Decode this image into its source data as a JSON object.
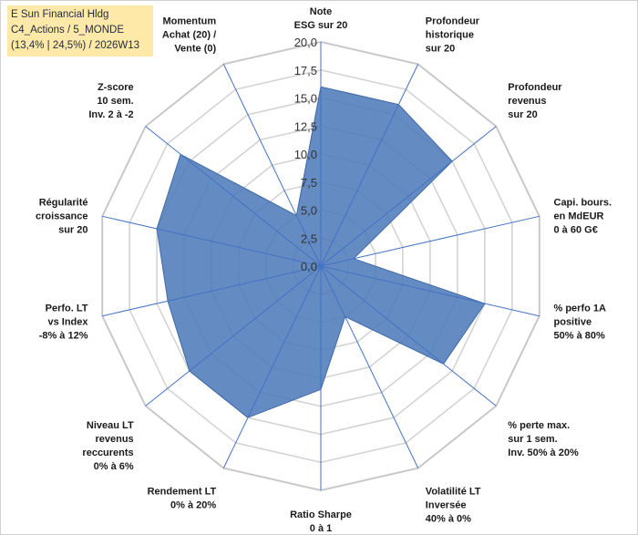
{
  "header": {
    "line1": "E Sun Financial Hldg",
    "line2": "C4_Actions / 5_MONDE",
    "line3": "(13,4% | 24,5%) / 2026W13"
  },
  "chart_data": {
    "type": "radar",
    "axes": [
      [
        "Note",
        "ESG sur 20"
      ],
      [
        "Profondeur",
        "historique",
        "sur 20"
      ],
      [
        "Profondeur",
        "revenus",
        "sur 20"
      ],
      [
        "Capi. bours.",
        "en MdEUR",
        "0 à 60 G€"
      ],
      [
        "% perfo 1A",
        "positive",
        "50% à 80%"
      ],
      [
        "% perte max.",
        "sur 1 sem.",
        "Inv. 50% à 20%"
      ],
      [
        "Volatilité LT",
        "Inversée",
        "40% à 0%"
      ],
      [
        "Ratio Sharpe",
        "0 à 1"
      ],
      [
        "Rendement LT",
        "0% à 20%"
      ],
      [
        "Niveau LT",
        "revenus",
        "reccurents",
        "0% à 6%"
      ],
      [
        "Perfo. LT",
        "vs Index",
        "-8% à 12%"
      ],
      [
        "Régularité",
        "croissance",
        "sur 20"
      ],
      [
        "Z-score",
        "10 sem.",
        "Inv. 2 à -2"
      ],
      [
        "Momentum",
        "Achat (20) /",
        "Vente (0)"
      ]
    ],
    "values": [
      16,
      16,
      15,
      3,
      15,
      14,
      5,
      11,
      15,
      15,
      14,
      15,
      16,
      5
    ],
    "rlim": [
      0,
      20
    ],
    "ticks": [
      "0,0",
      "2,5",
      "5,0",
      "7,5",
      "10,0",
      "12,5",
      "15,0",
      "17,5",
      "20,0"
    ],
    "fill_color": "#4f7bba",
    "grid": true
  }
}
